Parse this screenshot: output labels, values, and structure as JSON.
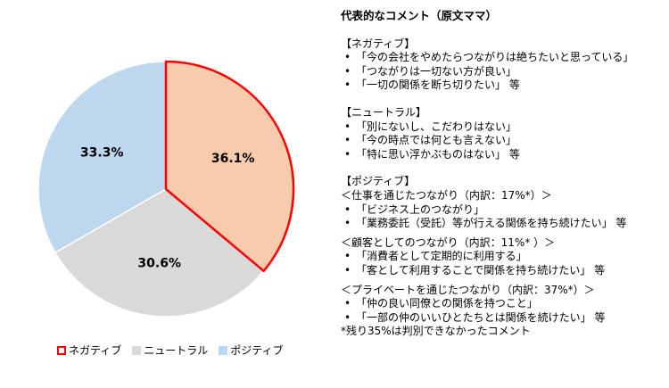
{
  "chart_data": {
    "type": "pie",
    "slices": [
      {
        "name": "ネガティブ",
        "value": 36.1,
        "label": "36.1%",
        "color": "#f8cbad",
        "edge": "#ff0000"
      },
      {
        "name": "ニュートラル",
        "value": 30.6,
        "label": "30.6%",
        "color": "#d9d9d9",
        "edge": "#ffffff"
      },
      {
        "name": "ポジティブ",
        "value": 33.3,
        "label": "33.3%",
        "color": "#bdd7ee",
        "edge": "#ffffff"
      }
    ],
    "legend_position": "bottom",
    "start_angle": "12 o'clock, clockwise"
  },
  "legend": {
    "items": [
      {
        "label": "ネガティブ",
        "fill": "#ffffff",
        "border": "#ff0000"
      },
      {
        "label": "ニュートラル",
        "fill": "#d9d9d9",
        "border": "#d9d9d9"
      },
      {
        "label": "ポジティブ",
        "fill": "#bdd7ee",
        "border": "#bdd7ee"
      }
    ]
  },
  "comments": {
    "title": "代表的なコメント（原文ママ）",
    "negative": {
      "heading": "【ネガティブ】",
      "items": [
        "「今の会社をやめたらつながりは絶ちたいと思っている」",
        "「つながりは一切ない方が良い」",
        "「一切の関係を断ち切りたい」 等"
      ]
    },
    "neutral": {
      "heading": "【ニュートラル】",
      "items": [
        "「別にないし、こだわりはない」",
        "「今の時点では何とも言えない」",
        "「特に思い浮かぶものはない」 等"
      ]
    },
    "positive": {
      "heading": "【ポジティブ】",
      "work": {
        "heading": "＜仕事を通じたつながり（内訳：17%*）＞",
        "items": [
          "「ビジネス上のつながり」",
          "「業務委託（受託）等が行える関係を持ち続けたい」 等"
        ]
      },
      "customer": {
        "heading": "＜顧客としてのつながり（内訳：11%* ）＞",
        "items": [
          "「消費者として定期的に利用する」",
          "「客として利用することで関係を持ち続けたい」 等"
        ]
      },
      "private": {
        "heading": "＜プライベートを通じたつながり（内訳：37%*）＞",
        "items": [
          "「仲の良い同僚との関係を持つこと」",
          "「一部の仲のいいひとたちとは関係を続けたい」 等"
        ]
      }
    },
    "footnote": "*残り35%は判別できなかったコメント"
  }
}
